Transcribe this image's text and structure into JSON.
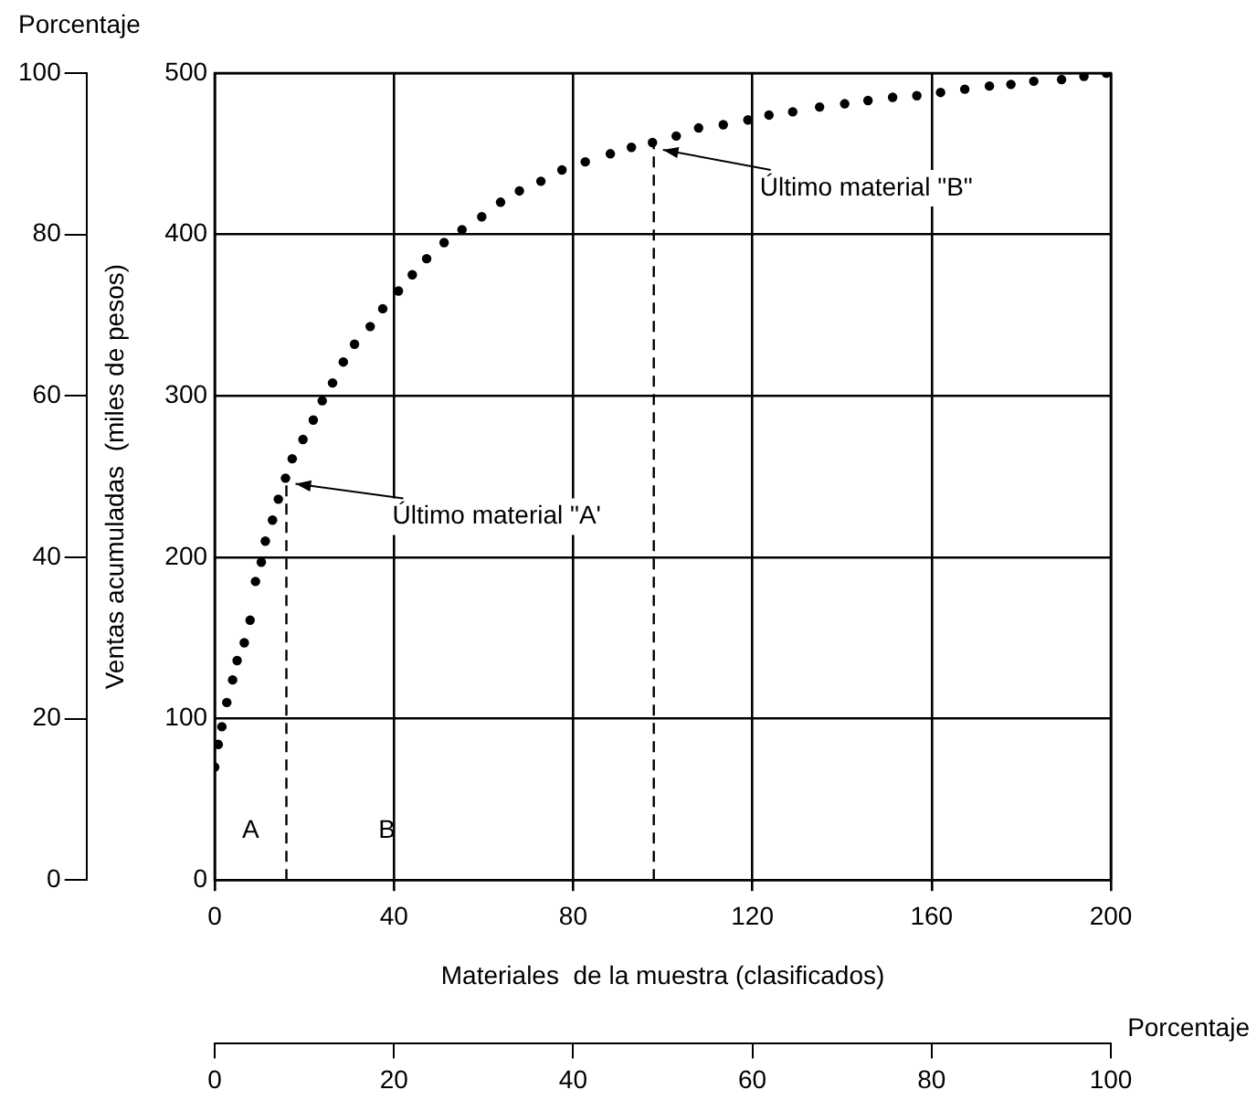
{
  "chart_data": {
    "type": "scatter",
    "xlabel": "Materiales  de la muestra (clasificados)",
    "ylabel": "Ventas acumuladas  (miles de pesos)",
    "y2label": "Porcentaje",
    "x2label": "Porcentaje",
    "xlim": [
      0,
      200
    ],
    "xticks": [
      0,
      40,
      80,
      120,
      160,
      200
    ],
    "ylim": [
      0,
      500
    ],
    "yticks": [
      0,
      100,
      200,
      300,
      400,
      500
    ],
    "y2lim": [
      0,
      100
    ],
    "y2ticks": [
      0,
      20,
      40,
      60,
      80,
      100
    ],
    "x2lim": [
      0,
      100
    ],
    "x2ticks": [
      0,
      20,
      40,
      60,
      80,
      100
    ],
    "grid": true,
    "legend": false,
    "marker": "circle",
    "series": [
      {
        "color": "#000000",
        "x": [
          0,
          0.8,
          1.6,
          2.7,
          4,
          5,
          6.6,
          7.9,
          9.1,
          10.4,
          11.3,
          12.9,
          14.2,
          15.8,
          17.3,
          19.7,
          22,
          24,
          26.3,
          28.7,
          31.2,
          34.7,
          37.5,
          41,
          44.1,
          47.3,
          51.2,
          55.2,
          59.6,
          63.8,
          68,
          72.8,
          77.5,
          82.7,
          88.3,
          93,
          97.7,
          103,
          108,
          113.5,
          119,
          123.7,
          129,
          135,
          140.6,
          145.8,
          151.3,
          156.7,
          162,
          167.4,
          172.9,
          177.7,
          182.8,
          189,
          194,
          199
        ],
        "values": [
          70,
          84,
          95,
          110,
          124,
          136,
          147,
          161,
          185,
          197,
          210,
          223,
          236,
          249,
          261,
          273,
          285,
          297,
          308,
          321,
          332,
          343,
          354,
          365,
          375,
          385,
          395,
          403,
          411,
          420,
          427,
          433,
          440,
          445,
          450,
          454,
          457,
          461,
          466,
          468,
          471,
          474,
          476,
          479,
          481,
          483,
          485,
          486,
          488,
          490,
          492,
          493,
          495,
          496,
          498,
          500
        ]
      }
    ],
    "ref_lines": [
      {
        "axis": "x",
        "value": 16,
        "line_style": "dashed",
        "color": "#000000"
      },
      {
        "axis": "x",
        "value": 98,
        "line_style": "dashed",
        "color": "#000000"
      }
    ],
    "annotations": [
      {
        "text": "Último material \"A'",
        "x": 16,
        "y": 250
      },
      {
        "text": "Último material \"B\"",
        "x": 98,
        "y": 457
      },
      "A",
      "B"
    ]
  }
}
